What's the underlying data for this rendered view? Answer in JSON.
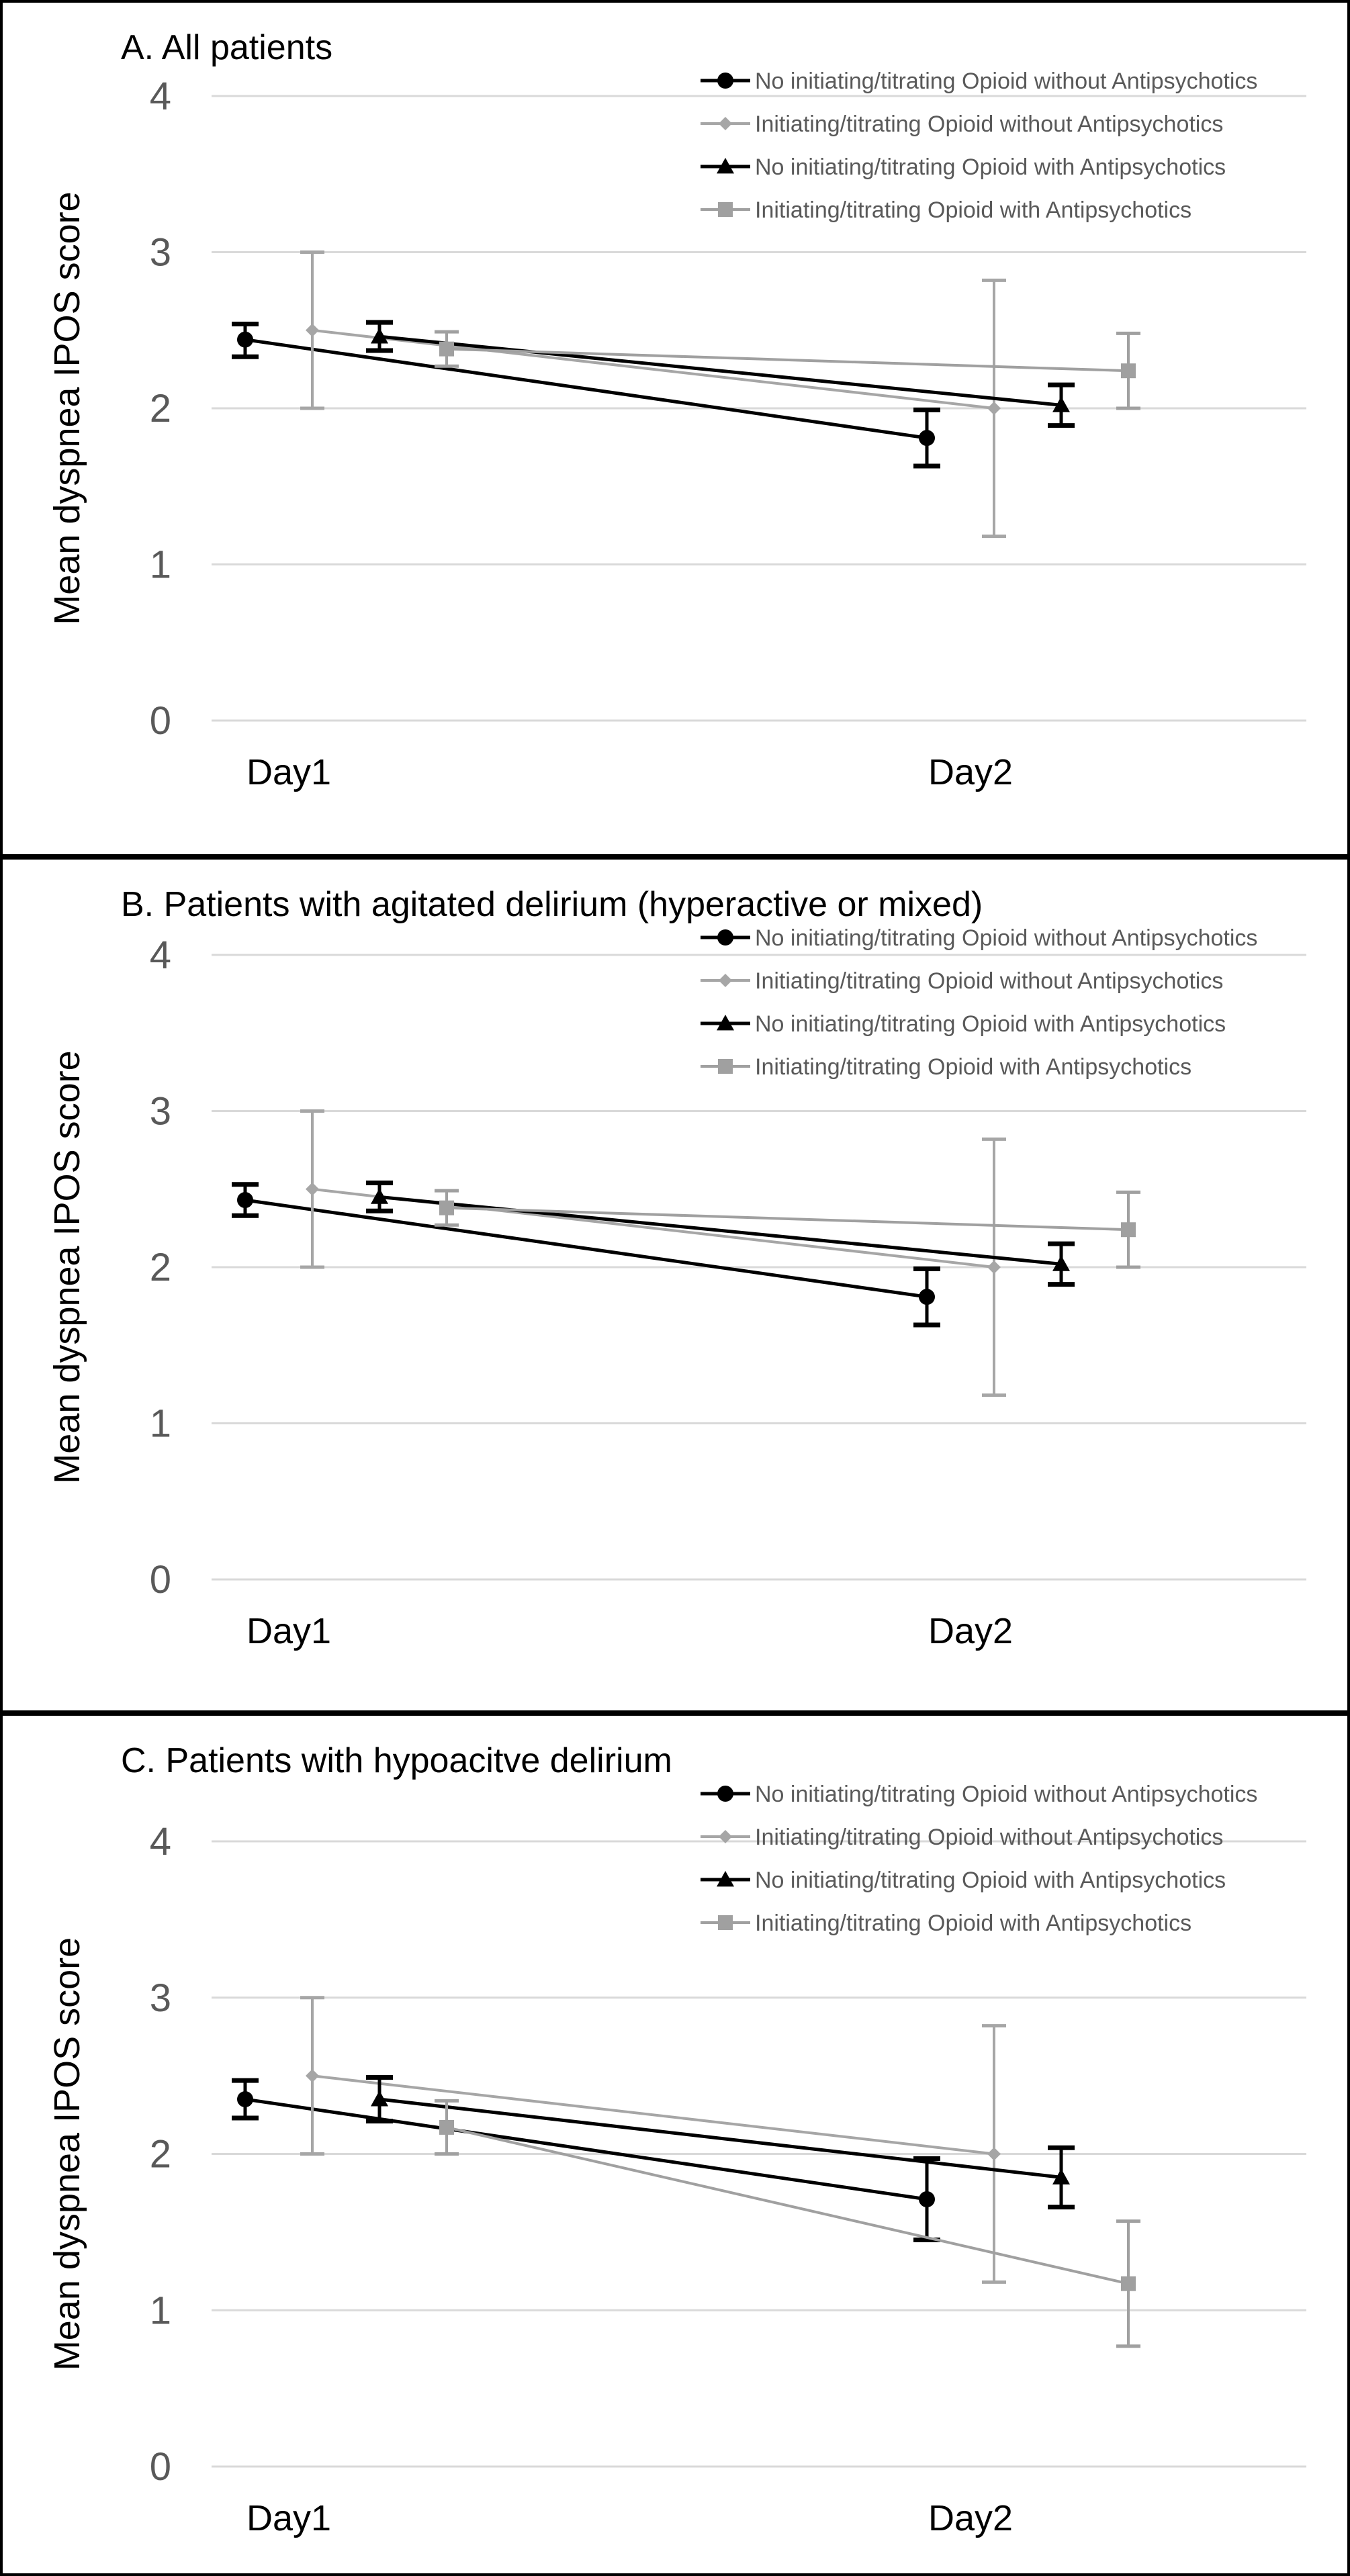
{
  "colors": {
    "black_series": "#000000",
    "gray_series": "#a6a6a6",
    "gray_square": "#a0a0a0",
    "axis_text": "#595959",
    "gridline": "#d9d9d9",
    "frame": "#000000"
  },
  "chart_data": [
    {
      "type": "line",
      "title": "A. All patients",
      "ylabel": "Mean dyspnea IPOS score",
      "xlabel": "",
      "categories": [
        "Day1",
        "Day2"
      ],
      "ylim": [
        0,
        4
      ],
      "yticks": [
        "0",
        "1",
        "2",
        "3",
        "4"
      ],
      "grid": true,
      "legend_position": "top-right",
      "series": [
        {
          "name": "No initiating/titrating Opioid without Antipsychotics",
          "marker": "circle",
          "color": "#000000",
          "values": [
            2.44,
            1.81
          ],
          "err_low": [
            2.33,
            1.63
          ],
          "err_high": [
            2.54,
            1.99
          ]
        },
        {
          "name": "Initiating/titrating Opioid without Antipsychotics",
          "marker": "diamond",
          "color": "#a6a6a6",
          "values": [
            2.5,
            2.0
          ],
          "err_low": [
            2.0,
            1.18
          ],
          "err_high": [
            3.0,
            2.82
          ]
        },
        {
          "name": "No initiating/titrating Opioid with Antipsychotics",
          "marker": "triangle",
          "color": "#000000",
          "values": [
            2.46,
            2.02
          ],
          "err_low": [
            2.37,
            1.89
          ],
          "err_high": [
            2.55,
            2.15
          ]
        },
        {
          "name": "Initiating/titrating Opioid with Antipsychotics",
          "marker": "square",
          "color": "#a0a0a0",
          "values": [
            2.38,
            2.24
          ],
          "err_low": [
            2.27,
            2.0
          ],
          "err_high": [
            2.49,
            2.48
          ]
        }
      ]
    },
    {
      "type": "line",
      "title": "B. Patients with agitated delirium (hyperactive or mixed)",
      "ylabel": "Mean dyspnea IPOS score",
      "xlabel": "",
      "categories": [
        "Day1",
        "Day2"
      ],
      "ylim": [
        0,
        4
      ],
      "yticks": [
        "0",
        "1",
        "2",
        "3",
        "4"
      ],
      "grid": true,
      "legend_position": "top-right",
      "series": [
        {
          "name": "No initiating/titrating Opioid without Antipsychotics",
          "marker": "circle",
          "color": "#000000",
          "values": [
            2.43,
            1.81
          ],
          "err_low": [
            2.33,
            1.63
          ],
          "err_high": [
            2.53,
            1.99
          ]
        },
        {
          "name": "Initiating/titrating Opioid without Antipsychotics",
          "marker": "diamond",
          "color": "#a6a6a6",
          "values": [
            2.5,
            2.0
          ],
          "err_low": [
            2.0,
            1.18
          ],
          "err_high": [
            3.0,
            2.82
          ]
        },
        {
          "name": "No initiating/titrating Opioid with Antipsychotics",
          "marker": "triangle",
          "color": "#000000",
          "values": [
            2.45,
            2.02
          ],
          "err_low": [
            2.36,
            1.89
          ],
          "err_high": [
            2.54,
            2.15
          ]
        },
        {
          "name": "Initiating/titrating Opioid with Antipsychotics",
          "marker": "square",
          "color": "#a0a0a0",
          "values": [
            2.38,
            2.24
          ],
          "err_low": [
            2.27,
            2.0
          ],
          "err_high": [
            2.49,
            2.48
          ]
        }
      ]
    },
    {
      "type": "line",
      "title": "C. Patients with hypoacitve delirium",
      "ylabel": "Mean dyspnea IPOS score",
      "xlabel": "",
      "categories": [
        "Day1",
        "Day2"
      ],
      "ylim": [
        0,
        4
      ],
      "yticks": [
        "0",
        "1",
        "2",
        "3",
        "4"
      ],
      "grid": true,
      "legend_position": "top-right",
      "series": [
        {
          "name": "No initiating/titrating Opioid without Antipsychotics",
          "marker": "circle",
          "color": "#000000",
          "values": [
            2.35,
            1.71
          ],
          "err_low": [
            2.23,
            1.45
          ],
          "err_high": [
            2.47,
            1.97
          ]
        },
        {
          "name": "Initiating/titrating Opioid without Antipsychotics",
          "marker": "diamond",
          "color": "#a6a6a6",
          "values": [
            2.5,
            2.0
          ],
          "err_low": [
            2.0,
            1.18
          ],
          "err_high": [
            3.0,
            2.82
          ]
        },
        {
          "name": "No initiating/titrating Opioid with Antipsychotics",
          "marker": "triangle",
          "color": "#000000",
          "values": [
            2.35,
            1.85
          ],
          "err_low": [
            2.21,
            1.66
          ],
          "err_high": [
            2.49,
            2.04
          ]
        },
        {
          "name": "Initiating/titrating Opioid with Antipsychotics",
          "marker": "square",
          "color": "#a0a0a0",
          "values": [
            2.17,
            1.17
          ],
          "err_low": [
            2.0,
            0.77
          ],
          "err_high": [
            2.34,
            1.57
          ]
        }
      ]
    }
  ]
}
